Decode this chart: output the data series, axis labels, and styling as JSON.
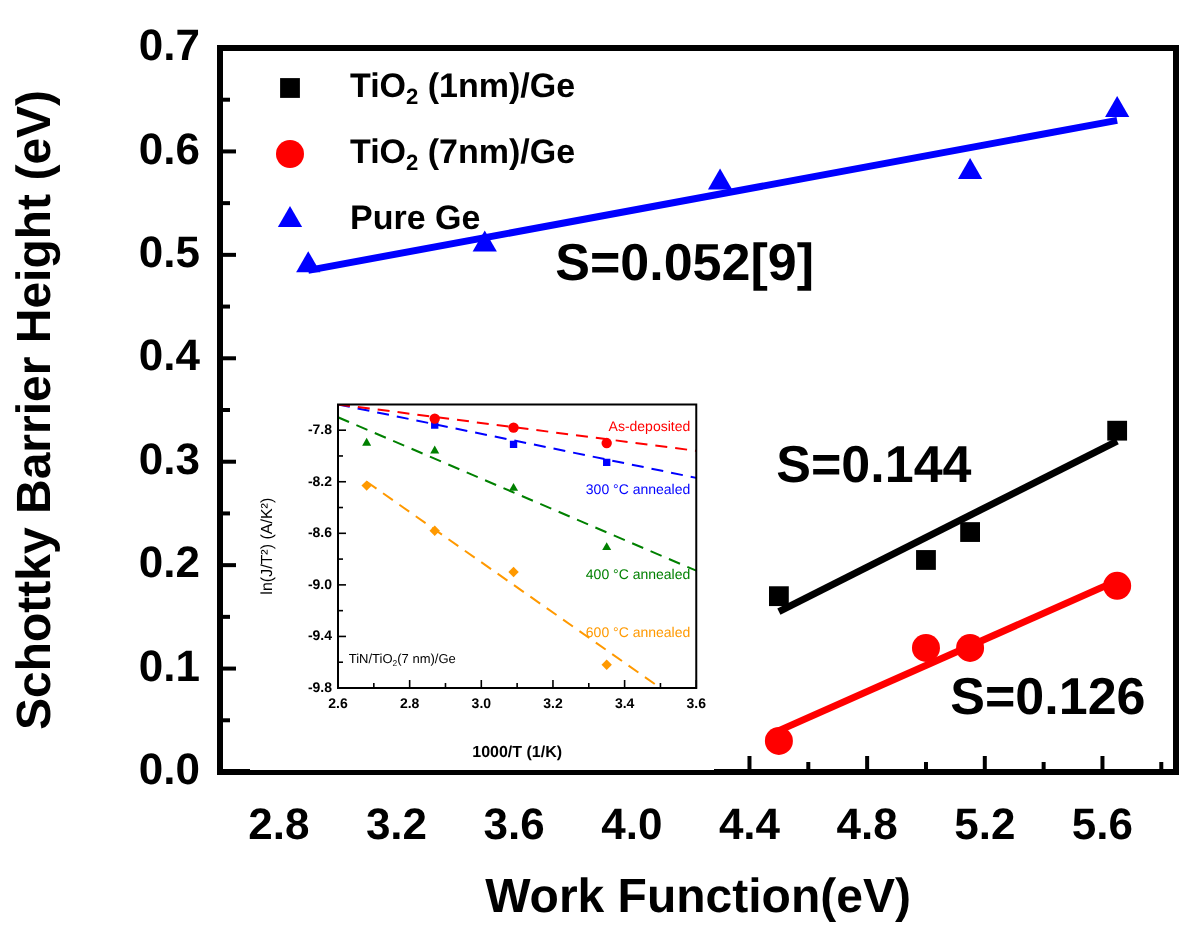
{
  "chart_data": [
    {
      "type": "scatter",
      "xlabel": "Work Function(eV)",
      "ylabel": "Schottky Barrier Height (eV)",
      "xlim": [
        2.6,
        5.85
      ],
      "xticks": [
        2.8,
        {
          "value": 3.0,
          "label": null
        },
        3.2,
        {
          "value": 3.4,
          "label": null
        },
        3.6,
        {
          "value": 3.8,
          "label": null
        },
        {
          "value": 4.0,
          "label": "4.0"
        },
        {
          "value": 4.2,
          "label": null
        },
        4.4,
        {
          "value": 4.6,
          "label": null
        },
        4.8,
        {
          "value": 5.0,
          "label": null
        },
        5.2,
        {
          "value": 5.4,
          "label": null
        },
        5.6,
        {
          "value": 5.8,
          "label": null
        }
      ],
      "ylim": [
        0,
        0.7
      ],
      "yticks": [
        {
          "value": 0,
          "label": "0.0"
        },
        {
          "value": 0.05,
          "label": null
        },
        0.1,
        {
          "value": 0.15,
          "label": null
        },
        0.2,
        {
          "value": 0.25,
          "label": null
        },
        0.3,
        {
          "value": 0.35,
          "label": null
        },
        0.4,
        {
          "value": 0.45,
          "label": null
        },
        0.5,
        {
          "value": 0.55,
          "label": null
        },
        0.6,
        {
          "value": 0.65,
          "label": null
        },
        0.7
      ],
      "legend": "top left",
      "series": [
        {
          "name": "TiO$_{2}$ (1nm)/Ge",
          "color": "#000000",
          "marker": "square",
          "x": [
            4.5,
            5.0,
            5.15,
            5.65
          ],
          "values": [
            0.17,
            0.205,
            0.232,
            0.33
          ]
        },
        {
          "name": "TiO$_{2}$ (7nm)/Ge",
          "color": "#ff0000",
          "marker": "circle",
          "x": [
            4.5,
            5.0,
            5.15,
            5.65
          ],
          "values": [
            0.03,
            0.12,
            0.12,
            0.18
          ]
        },
        {
          "name": "Pure Ge",
          "color": "#0000ff",
          "marker": "triangle",
          "x": [
            2.9,
            3.5,
            4.3,
            5.15,
            5.65
          ],
          "values": [
            0.49,
            0.51,
            0.57,
            0.58,
            0.64
          ]
        },
        {
          "type": "line",
          "color": "#000000",
          "marker": "none",
          "x": [
            4.5,
            5.65
          ],
          "values": [
            0.155,
            0.32
          ]
        },
        {
          "type": "line",
          "color": "#ff0000",
          "marker": "none",
          "x": [
            4.5,
            5.65
          ],
          "values": [
            0.04,
            0.185
          ]
        },
        {
          "type": "line",
          "color": "#0000ff",
          "marker": "none",
          "x": [
            2.9,
            5.65
          ],
          "values": [
            0.485,
            0.63
          ]
        }
      ],
      "annotations": [
        "S=0.052[9]",
        "S=0.144",
        "S=0.126"
      ]
    },
    {
      "type": "scatter",
      "xlabel": "1000/T (1/K)",
      "ylabel": "ln(J/T²) (A/K²)",
      "xlim": [
        2.6,
        3.6
      ],
      "xticks": [
        2.6,
        {
          "value": 2.7,
          "label": null
        },
        2.8,
        {
          "value": 2.9,
          "label": null
        },
        {
          "value": 3.0,
          "label": "3.0"
        },
        {
          "value": 3.1,
          "label": null
        },
        3.2,
        {
          "value": 3.3,
          "label": null
        },
        3.4,
        {
          "value": 3.5,
          "label": null
        },
        3.6
      ],
      "ylim": [
        -9.8,
        -7.6
      ],
      "yticks": [
        -9.8,
        {
          "value": -9.6,
          "label": null
        },
        -9.4,
        {
          "value": -9.2,
          "label": null
        },
        {
          "value": -9.0,
          "label": "-9.0"
        },
        {
          "value": -8.8,
          "label": null
        },
        -8.6,
        {
          "value": -8.4,
          "label": null
        },
        -8.2,
        {
          "value": -8.0,
          "label": null
        },
        -7.8
      ],
      "series": [
        {
          "name": "As-deposited",
          "color": "#ff0000",
          "marker": "circle",
          "x": [
            2.87,
            3.09,
            3.35
          ],
          "values": [
            -7.71,
            -7.78,
            -7.9
          ]
        },
        {
          "name": "300 °C annealed",
          "color": "#0000ff",
          "marker": "square",
          "x": [
            2.87,
            3.09,
            3.35
          ],
          "values": [
            -7.76,
            -7.91,
            -8.05
          ]
        },
        {
          "name": "400 °C annealed",
          "color": "#008000",
          "marker": "triangle",
          "x": [
            2.68,
            2.87,
            3.09,
            3.35
          ],
          "values": [
            -7.9,
            -7.96,
            -8.25,
            -8.71
          ]
        },
        {
          "name": "600 °C annealed",
          "color": "#ff9900",
          "marker": "diamond",
          "x": [
            2.68,
            2.87,
            3.09,
            3.35
          ],
          "values": [
            -8.23,
            -8.58,
            -8.9,
            -9.62
          ]
        },
        {
          "type": "line",
          "color": "#ff0000",
          "marker": "none",
          "line_style": "dashed",
          "x": [
            2.6,
            3.6
          ],
          "values": [
            -7.6,
            -7.96
          ]
        },
        {
          "type": "line",
          "color": "#0000ff",
          "marker": "none",
          "line_style": "dashed",
          "x": [
            2.6,
            3.6
          ],
          "values": [
            -7.6,
            -8.17
          ]
        },
        {
          "type": "line",
          "color": "#008000",
          "marker": "none",
          "line_style": "dashed",
          "x": [
            2.6,
            3.6
          ],
          "values": [
            -7.7,
            -8.89
          ]
        },
        {
          "type": "line",
          "color": "#ff9900",
          "marker": "none",
          "line_style": "dashed",
          "x": [
            2.68,
            3.5
          ],
          "values": [
            -8.2,
            -9.8
          ]
        }
      ],
      "annotations": [
        "TiN/TiO$_{2}$(7 nm)/Ge"
      ]
    }
  ]
}
